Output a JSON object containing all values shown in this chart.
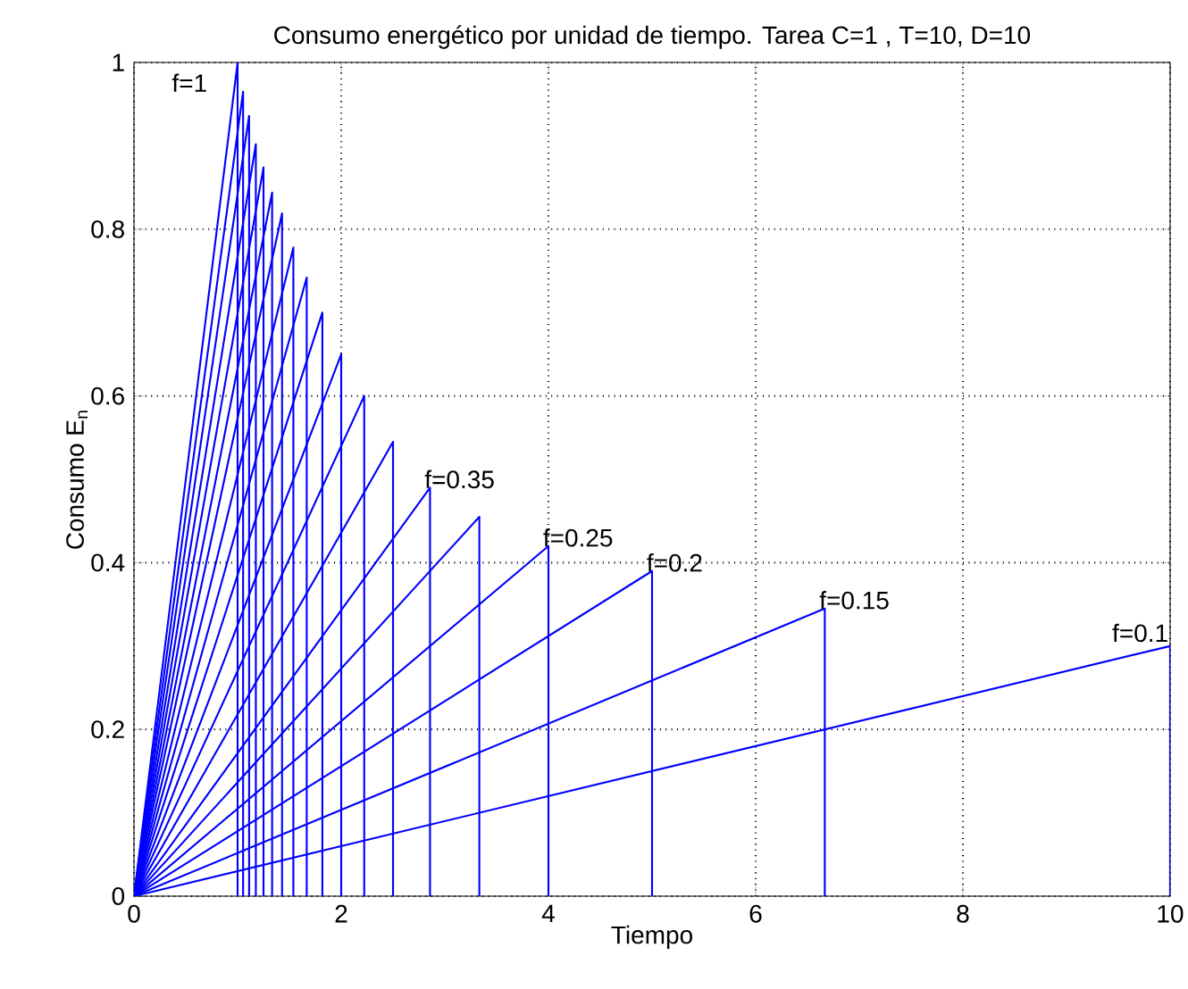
{
  "chart_data": {
    "type": "line",
    "title": "Consumo energético por unidad de tiempo. Tarea C=1 , T=10, D=10",
    "xlabel": "Tiempo",
    "ylabel": "Consumo E$_{n}$",
    "xlim": [
      0,
      10
    ],
    "ylim": [
      0,
      1
    ],
    "xticks": [
      0,
      2,
      4,
      6,
      8,
      10
    ],
    "yticks": [
      0,
      0.2,
      0.4,
      0.6,
      0.8,
      1
    ],
    "grid": true,
    "line_style": "solid",
    "marker": "none",
    "series": [
      {
        "color": "#0000ff",
        "x": [
          0,
          1,
          1
        ],
        "values": [
          0,
          1.0,
          0
        ]
      },
      {
        "color": "#0000ff",
        "x": [
          0,
          1.053,
          1.053
        ],
        "values": [
          0,
          0.965,
          0
        ]
      },
      {
        "color": "#0000ff",
        "x": [
          0,
          1.111,
          1.111
        ],
        "values": [
          0,
          0.936,
          0
        ]
      },
      {
        "color": "#0000ff",
        "x": [
          0,
          1.176,
          1.176
        ],
        "values": [
          0,
          0.902,
          0
        ]
      },
      {
        "color": "#0000ff",
        "x": [
          0,
          1.25,
          1.25
        ],
        "values": [
          0,
          0.874,
          0
        ]
      },
      {
        "color": "#0000ff",
        "x": [
          0,
          1.333,
          1.333
        ],
        "values": [
          0,
          0.844,
          0
        ]
      },
      {
        "color": "#0000ff",
        "x": [
          0,
          1.429,
          1.429
        ],
        "values": [
          0,
          0.819,
          0
        ]
      },
      {
        "color": "#0000ff",
        "x": [
          0,
          1.538,
          1.538
        ],
        "values": [
          0,
          0.778,
          0
        ]
      },
      {
        "color": "#0000ff",
        "x": [
          0,
          1.667,
          1.667
        ],
        "values": [
          0,
          0.742,
          0
        ]
      },
      {
        "color": "#0000ff",
        "x": [
          0,
          1.818,
          1.818
        ],
        "values": [
          0,
          0.7,
          0
        ]
      },
      {
        "color": "#0000ff",
        "x": [
          0,
          2,
          2
        ],
        "values": [
          0,
          0.65,
          0
        ]
      },
      {
        "color": "#0000ff",
        "x": [
          0,
          2.222,
          2.222
        ],
        "values": [
          0,
          0.6,
          0
        ]
      },
      {
        "color": "#0000ff",
        "x": [
          0,
          2.5,
          2.5
        ],
        "values": [
          0,
          0.545,
          0
        ]
      },
      {
        "color": "#0000ff",
        "x": [
          0,
          2.857,
          2.857
        ],
        "values": [
          0,
          0.49,
          0
        ]
      },
      {
        "color": "#0000ff",
        "x": [
          0,
          3.333,
          3.333
        ],
        "values": [
          0,
          0.455,
          0
        ]
      },
      {
        "color": "#0000ff",
        "x": [
          0,
          4,
          4
        ],
        "values": [
          0,
          0.42,
          0
        ]
      },
      {
        "color": "#0000ff",
        "x": [
          0,
          5,
          5
        ],
        "values": [
          0,
          0.39,
          0
        ]
      },
      {
        "color": "#0000ff",
        "x": [
          0,
          6.667,
          6.667
        ],
        "values": [
          0,
          0.345,
          0
        ]
      },
      {
        "color": "#0000ff",
        "x": [
          0,
          10,
          10
        ],
        "values": [
          0,
          0.3,
          0
        ]
      }
    ],
    "annotations": [
      {
        "text": "f=1",
        "x": 1,
        "y": 1
      },
      {
        "text": "f=0.35",
        "x": 2.857,
        "y": 0.49
      },
      {
        "text": "f=0.25",
        "x": 4,
        "y": 0.42
      },
      {
        "text": "f=0.2",
        "x": 5,
        "y": 0.39
      },
      {
        "text": "f=0.15",
        "x": 6.667,
        "y": 0.345
      },
      {
        "text": "f=0.1",
        "x": 10,
        "y": 0.3
      }
    ]
  }
}
